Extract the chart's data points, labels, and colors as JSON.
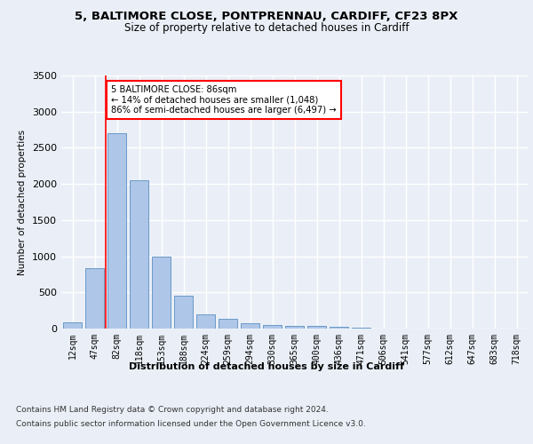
{
  "title1": "5, BALTIMORE CLOSE, PONTPRENNAU, CARDIFF, CF23 8PX",
  "title2": "Size of property relative to detached houses in Cardiff",
  "xlabel": "Distribution of detached houses by size in Cardiff",
  "ylabel": "Number of detached properties",
  "bar_labels": [
    "12sqm",
    "47sqm",
    "82sqm",
    "118sqm",
    "153sqm",
    "188sqm",
    "224sqm",
    "259sqm",
    "294sqm",
    "330sqm",
    "365sqm",
    "400sqm",
    "436sqm",
    "471sqm",
    "506sqm",
    "541sqm",
    "577sqm",
    "612sqm",
    "647sqm",
    "683sqm",
    "718sqm"
  ],
  "bar_values": [
    80,
    830,
    2700,
    2050,
    1000,
    450,
    200,
    130,
    70,
    55,
    40,
    35,
    25,
    10,
    5,
    3,
    2,
    1,
    1,
    0,
    0
  ],
  "bar_color": "#aec6e8",
  "bar_edgecolor": "#5a8fc2",
  "property_line_x": 1.5,
  "annotation_text": "5 BALTIMORE CLOSE: 86sqm\n← 14% of detached houses are smaller (1,048)\n86% of semi-detached houses are larger (6,497) →",
  "annotation_box_color": "white",
  "annotation_box_edgecolor": "red",
  "vline_color": "red",
  "ylim": [
    0,
    3500
  ],
  "yticks": [
    0,
    500,
    1000,
    1500,
    2000,
    2500,
    3000,
    3500
  ],
  "footer1": "Contains HM Land Registry data © Crown copyright and database right 2024.",
  "footer2": "Contains public sector information licensed under the Open Government Licence v3.0.",
  "bg_color": "#eaeff7",
  "plot_bg_color": "#eaeff7",
  "grid_color": "white"
}
